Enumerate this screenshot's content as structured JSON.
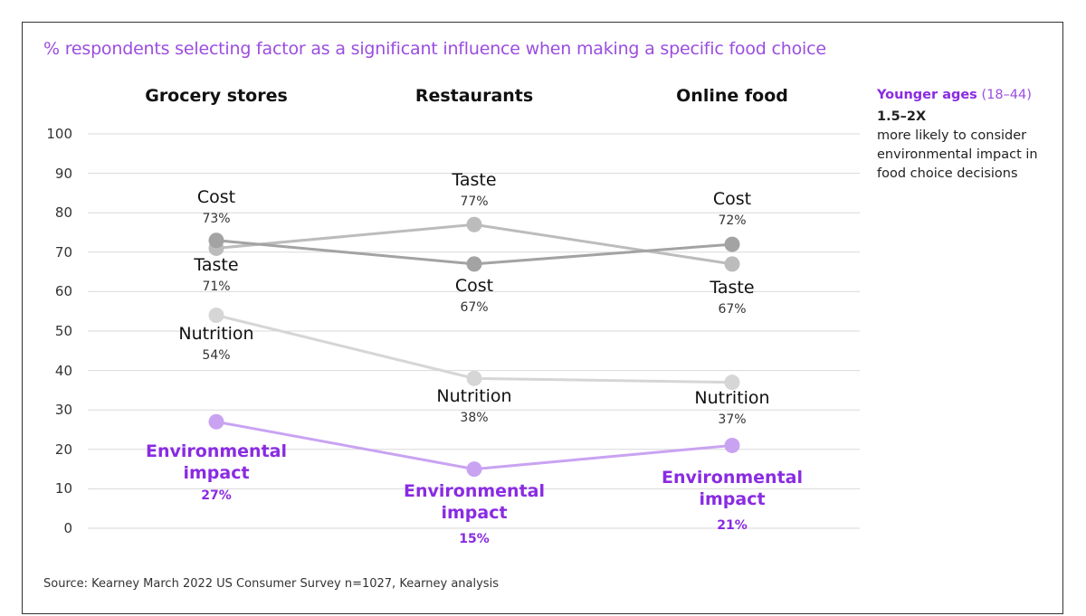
{
  "chart_data": {
    "type": "line",
    "title": "% respondents selecting factor as a significant influence when making a specific food choice",
    "categories": [
      "Grocery stores",
      "Restaurants",
      "Online food"
    ],
    "ylim": [
      0,
      100
    ],
    "yticks": [
      "100",
      "90",
      "80",
      "70",
      "60",
      "50",
      "40",
      "30",
      "20",
      "10",
      "0"
    ],
    "grid": true,
    "series": [
      {
        "name": "Cost",
        "values": [
          73,
          67,
          72
        ],
        "labels": [
          "73%",
          "67%",
          "72%"
        ],
        "color": "#a3a3a3"
      },
      {
        "name": "Taste",
        "values": [
          71,
          77,
          67
        ],
        "labels": [
          "71%",
          "77%",
          "67%"
        ],
        "color": "#bcbcbc"
      },
      {
        "name": "Nutrition",
        "values": [
          54,
          38,
          37
        ],
        "labels": [
          "54%",
          "38%",
          "37%"
        ],
        "color": "#d6d6d6"
      },
      {
        "name": "Environmental impact",
        "name_lines": [
          "Environmental",
          "impact"
        ],
        "values": [
          27,
          15,
          21
        ],
        "labels": [
          "27%",
          "15%",
          "21%"
        ],
        "color": "#c9a3f2"
      }
    ]
  },
  "callout": {
    "heading": "Younger ages",
    "range": "(18–44)",
    "multiplier": "1.5–2X",
    "text": "more likely to consider environmental impact in food choice decisions"
  },
  "source": "Source: Kearney March 2022 US Consumer Survey n=1027, Kearney analysis",
  "colors": {
    "accent": "#8a2be2",
    "title": "#9b4de0"
  }
}
